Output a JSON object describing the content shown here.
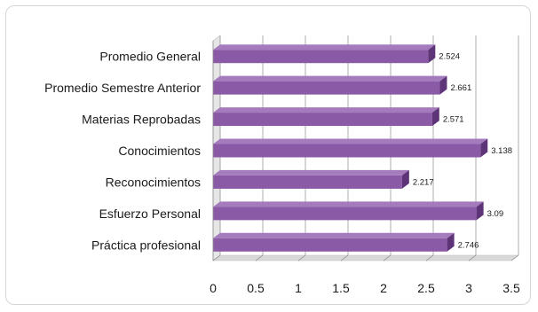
{
  "chart_data": {
    "type": "bar",
    "orientation": "horizontal",
    "style": "3d",
    "categories": [
      "Promedio General",
      "Promedio Semestre Anterior",
      "Materias Reprobadas",
      "Conocimientos",
      "Reconocimientos",
      "Esfuerzo Personal",
      "Práctica profesional"
    ],
    "values": [
      2.524,
      2.661,
      2.571,
      3.138,
      2.217,
      3.09,
      2.746
    ],
    "value_labels": [
      "2.524",
      "2.661",
      "2.571",
      "3.138",
      "2.217",
      "3.09",
      "2.746"
    ],
    "xlim": [
      0,
      3.5
    ],
    "xticks": [
      "0",
      "0.5",
      "1",
      "1.5",
      "2",
      "2.5",
      "3",
      "3.5"
    ],
    "grid": true,
    "bar_color": "#8b5aa6",
    "bar_top_color": "#a47cbd",
    "bar_side_color": "#5e3478",
    "title": "",
    "xlabel": "",
    "ylabel": ""
  }
}
